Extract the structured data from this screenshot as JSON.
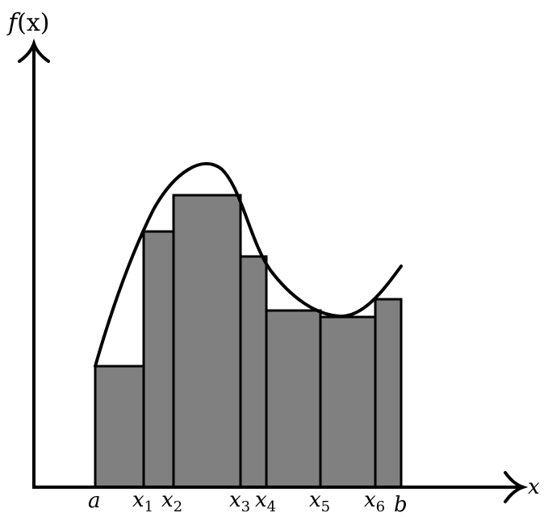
{
  "diagram": {
    "y_axis_label": {
      "base": "f",
      "arg": "(x)"
    },
    "x_axis_label": "x",
    "points": [
      {
        "base": "a",
        "sub": ""
      },
      {
        "base": "x",
        "sub": "1"
      },
      {
        "base": "x",
        "sub": "2"
      },
      {
        "base": "x",
        "sub": "3"
      },
      {
        "base": "x",
        "sub": "4"
      },
      {
        "base": "x",
        "sub": "5"
      },
      {
        "base": "x",
        "sub": "6"
      },
      {
        "base": "b",
        "sub": ""
      }
    ],
    "colors": {
      "rectangle_fill": "#808080",
      "stroke": "#000000",
      "background": "#ffffff"
    }
  }
}
